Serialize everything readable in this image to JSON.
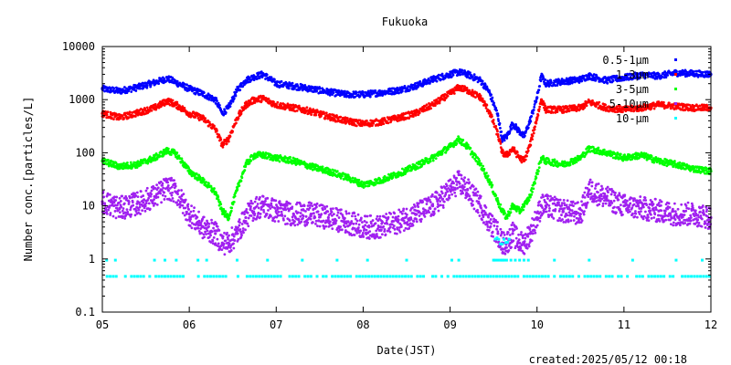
{
  "chart_data": {
    "type": "scatter",
    "title": "Fukuoka",
    "xlabel": "Date(JST)",
    "ylabel": "Number conc.[particles/L]",
    "yscale": "log",
    "ylim": [
      0.1,
      10000
    ],
    "xlim": [
      "05",
      "12"
    ],
    "xticks": [
      "05",
      "06",
      "07",
      "08",
      "09",
      "10",
      "11",
      "12"
    ],
    "yticks": [
      "0.1",
      "1",
      "10",
      "100",
      "1000",
      "10000"
    ],
    "grid": false,
    "legend_position": "top-right",
    "footer": "created:2025/05/12 00:18",
    "series": [
      {
        "name": "0.5-1μm",
        "color": "#0000ff",
        "points": [
          [
            5.0,
            1600
          ],
          [
            5.2,
            1450
          ],
          [
            5.4,
            1700
          ],
          [
            5.6,
            2100
          ],
          [
            5.75,
            2500
          ],
          [
            5.85,
            2100
          ],
          [
            6.0,
            1600
          ],
          [
            6.15,
            1300
          ],
          [
            6.3,
            1000
          ],
          [
            6.38,
            550
          ],
          [
            6.45,
            700
          ],
          [
            6.55,
            1500
          ],
          [
            6.65,
            2300
          ],
          [
            6.75,
            2700
          ],
          [
            6.85,
            3000
          ],
          [
            7.0,
            2000
          ],
          [
            7.2,
            1800
          ],
          [
            7.4,
            1600
          ],
          [
            7.6,
            1400
          ],
          [
            7.8,
            1250
          ],
          [
            8.0,
            1250
          ],
          [
            8.2,
            1350
          ],
          [
            8.4,
            1500
          ],
          [
            8.6,
            1800
          ],
          [
            8.8,
            2400
          ],
          [
            9.0,
            3000
          ],
          [
            9.1,
            3300
          ],
          [
            9.2,
            3000
          ],
          [
            9.35,
            2300
          ],
          [
            9.45,
            1400
          ],
          [
            9.55,
            500
          ],
          [
            9.6,
            180
          ],
          [
            9.65,
            200
          ],
          [
            9.72,
            350
          ],
          [
            9.8,
            250
          ],
          [
            9.85,
            200
          ],
          [
            9.92,
            400
          ],
          [
            10.0,
            1100
          ],
          [
            10.05,
            2800
          ],
          [
            10.1,
            2000
          ],
          [
            10.3,
            2200
          ],
          [
            10.5,
            2400
          ],
          [
            10.6,
            2800
          ],
          [
            10.8,
            2300
          ],
          [
            11.0,
            2600
          ],
          [
            11.2,
            2900
          ],
          [
            11.4,
            2800
          ],
          [
            11.6,
            3200
          ],
          [
            11.8,
            3100
          ],
          [
            12.0,
            3000
          ]
        ]
      },
      {
        "name": "1-3μm",
        "color": "#ff0000",
        "points": [
          [
            5.0,
            550
          ],
          [
            5.2,
            460
          ],
          [
            5.4,
            560
          ],
          [
            5.6,
            700
          ],
          [
            5.75,
            950
          ],
          [
            5.85,
            800
          ],
          [
            6.0,
            550
          ],
          [
            6.15,
            450
          ],
          [
            6.3,
            280
          ],
          [
            6.38,
            140
          ],
          [
            6.45,
            180
          ],
          [
            6.55,
            450
          ],
          [
            6.65,
            800
          ],
          [
            6.75,
            1000
          ],
          [
            6.85,
            1050
          ],
          [
            7.0,
            800
          ],
          [
            7.2,
            700
          ],
          [
            7.4,
            600
          ],
          [
            7.6,
            480
          ],
          [
            7.8,
            400
          ],
          [
            8.0,
            350
          ],
          [
            8.2,
            380
          ],
          [
            8.4,
            450
          ],
          [
            8.6,
            550
          ],
          [
            8.8,
            800
          ],
          [
            9.0,
            1300
          ],
          [
            9.1,
            1700
          ],
          [
            9.2,
            1500
          ],
          [
            9.35,
            1100
          ],
          [
            9.45,
            600
          ],
          [
            9.55,
            220
          ],
          [
            9.6,
            100
          ],
          [
            9.65,
            90
          ],
          [
            9.72,
            120
          ],
          [
            9.8,
            80
          ],
          [
            9.85,
            70
          ],
          [
            9.92,
            140
          ],
          [
            10.0,
            450
          ],
          [
            10.05,
            1000
          ],
          [
            10.1,
            650
          ],
          [
            10.3,
            650
          ],
          [
            10.5,
            700
          ],
          [
            10.6,
            900
          ],
          [
            10.8,
            700
          ],
          [
            11.0,
            650
          ],
          [
            11.2,
            700
          ],
          [
            11.4,
            800
          ],
          [
            11.6,
            750
          ],
          [
            11.8,
            700
          ],
          [
            12.0,
            700
          ]
        ]
      },
      {
        "name": "3-5μm",
        "color": "#00ff00",
        "points": [
          [
            5.0,
            70
          ],
          [
            5.2,
            55
          ],
          [
            5.4,
            60
          ],
          [
            5.6,
            80
          ],
          [
            5.75,
            110
          ],
          [
            5.85,
            95
          ],
          [
            6.0,
            45
          ],
          [
            6.15,
            30
          ],
          [
            6.3,
            18
          ],
          [
            6.38,
            8
          ],
          [
            6.45,
            6
          ],
          [
            6.55,
            20
          ],
          [
            6.65,
            60
          ],
          [
            6.75,
            90
          ],
          [
            6.85,
            90
          ],
          [
            7.0,
            80
          ],
          [
            7.2,
            70
          ],
          [
            7.4,
            55
          ],
          [
            7.6,
            45
          ],
          [
            7.8,
            35
          ],
          [
            8.0,
            25
          ],
          [
            8.2,
            30
          ],
          [
            8.4,
            40
          ],
          [
            8.6,
            55
          ],
          [
            8.8,
            80
          ],
          [
            9.0,
            130
          ],
          [
            9.1,
            180
          ],
          [
            9.2,
            130
          ],
          [
            9.35,
            60
          ],
          [
            9.45,
            30
          ],
          [
            9.55,
            12
          ],
          [
            9.6,
            8
          ],
          [
            9.65,
            6
          ],
          [
            9.72,
            10
          ],
          [
            9.8,
            8
          ],
          [
            9.85,
            10
          ],
          [
            9.92,
            15
          ],
          [
            10.0,
            40
          ],
          [
            10.05,
            80
          ],
          [
            10.1,
            70
          ],
          [
            10.3,
            60
          ],
          [
            10.5,
            80
          ],
          [
            10.6,
            120
          ],
          [
            10.8,
            100
          ],
          [
            11.0,
            80
          ],
          [
            11.2,
            90
          ],
          [
            11.4,
            70
          ],
          [
            11.6,
            60
          ],
          [
            11.8,
            50
          ],
          [
            12.0,
            45
          ]
        ]
      },
      {
        "name": "5-10μm",
        "color": "#a020f0",
        "points": [
          [
            5.0,
            12
          ],
          [
            5.2,
            9
          ],
          [
            5.4,
            11
          ],
          [
            5.6,
            15
          ],
          [
            5.75,
            22
          ],
          [
            5.85,
            18
          ],
          [
            6.0,
            7
          ],
          [
            6.15,
            4
          ],
          [
            6.3,
            3
          ],
          [
            6.38,
            2
          ],
          [
            6.45,
            2
          ],
          [
            6.55,
            3
          ],
          [
            6.65,
            6
          ],
          [
            6.75,
            9
          ],
          [
            6.85,
            10
          ],
          [
            7.0,
            8
          ],
          [
            7.2,
            7
          ],
          [
            7.4,
            7
          ],
          [
            7.6,
            6
          ],
          [
            7.8,
            5
          ],
          [
            8.0,
            4
          ],
          [
            8.2,
            4
          ],
          [
            8.4,
            5
          ],
          [
            8.6,
            7
          ],
          [
            8.8,
            10
          ],
          [
            9.0,
            20
          ],
          [
            9.1,
            28
          ],
          [
            9.2,
            20
          ],
          [
            9.35,
            10
          ],
          [
            9.45,
            5
          ],
          [
            9.55,
            3
          ],
          [
            9.6,
            2
          ],
          [
            9.65,
            2
          ],
          [
            9.72,
            3
          ],
          [
            9.8,
            2
          ],
          [
            9.85,
            2
          ],
          [
            9.92,
            3
          ],
          [
            10.0,
            6
          ],
          [
            10.05,
            10
          ],
          [
            10.1,
            10
          ],
          [
            10.3,
            8
          ],
          [
            10.5,
            7
          ],
          [
            10.6,
            20
          ],
          [
            10.8,
            14
          ],
          [
            11.0,
            10
          ],
          [
            11.2,
            9
          ],
          [
            11.4,
            8
          ],
          [
            11.6,
            7
          ],
          [
            11.8,
            7
          ],
          [
            12.0,
            6
          ]
        ]
      },
      {
        "name": "10-μm",
        "color": "#00ffff",
        "baseline": 0.47,
        "upper": 0.95,
        "upper_points_at": [
          5.05,
          5.15,
          5.6,
          5.72,
          5.85,
          6.1,
          6.2,
          6.55,
          6.9,
          7.3,
          7.7,
          8.05,
          8.5,
          9.02,
          9.1,
          9.5,
          9.52,
          9.55,
          9.58,
          9.6,
          9.62,
          9.65,
          9.7,
          9.75,
          9.8,
          9.85,
          9.9,
          10.2,
          10.6,
          11.1,
          11.6,
          11.9
        ]
      }
    ]
  }
}
